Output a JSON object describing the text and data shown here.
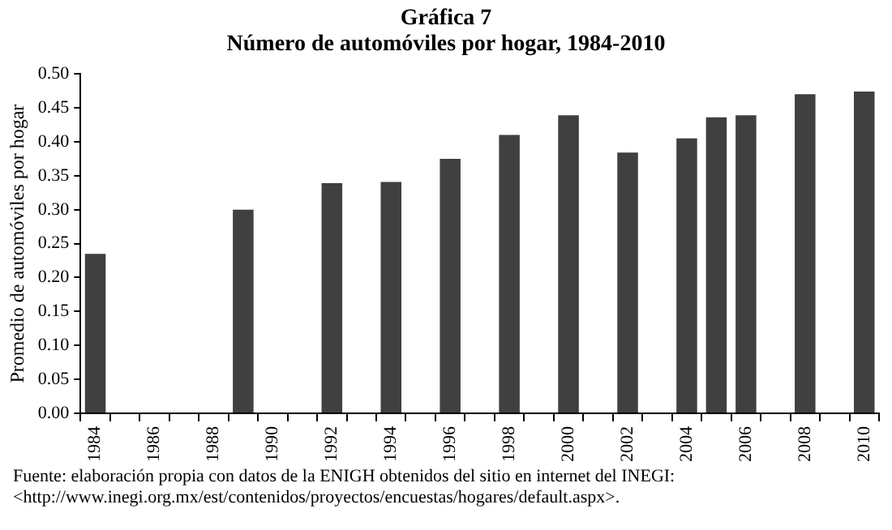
{
  "chart_data": {
    "type": "bar",
    "title": "Gráfica 7",
    "subtitle": "Número de automóviles por hogar, 1984-2010",
    "ylabel": "Promedio de automóviles por hogar",
    "categories": [
      "1984",
      null,
      "1986",
      null,
      "1988",
      null,
      "1990",
      null,
      "1992",
      null,
      "1994",
      null,
      "1996",
      null,
      "1998",
      null,
      "2000",
      null,
      "2002",
      null,
      "2004",
      null,
      "2006",
      null,
      "2008",
      null,
      "2010"
    ],
    "values": [
      0.235,
      null,
      null,
      null,
      null,
      0.3,
      null,
      null,
      0.339,
      null,
      0.341,
      null,
      0.375,
      null,
      0.41,
      null,
      0.439,
      null,
      0.384,
      null,
      0.405,
      0.436,
      0.439,
      null,
      0.47,
      null,
      0.474
    ],
    "color": "#404040",
    "ylim": [
      0,
      0.5
    ],
    "yticks": [
      {
        "value": 0,
        "label": "0.00"
      },
      {
        "value": 0.05,
        "label": "0.05"
      },
      {
        "value": 0.1,
        "label": "0.10"
      },
      {
        "value": 0.15,
        "label": "0.15"
      },
      {
        "value": 0.2,
        "label": "0.20"
      },
      {
        "value": 0.25,
        "label": "0.25"
      },
      {
        "value": 0.3,
        "label": "0.30"
      },
      {
        "value": 0.35,
        "label": "0.35"
      },
      {
        "value": 0.4,
        "label": "0.40"
      },
      {
        "value": 0.45,
        "label": "0.45"
      },
      {
        "value": 0.5,
        "label": "0.50"
      }
    ],
    "grid": false,
    "legend": false,
    "annotations": [
      "Fuente: elaboración propia con datos de la ENIGH obtenidos del sitio en internet del INEGI: <http://www.inegi.org.mx/est/contenidos/proyectos/encuestas/hogares/default.aspx>."
    ]
  }
}
